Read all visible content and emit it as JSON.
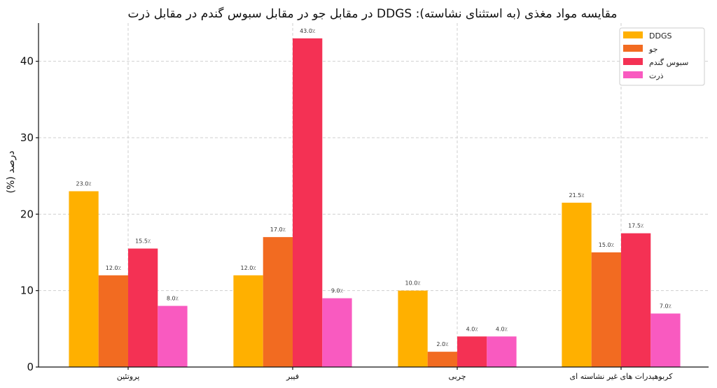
{
  "chart_data": {
    "type": "bar",
    "title": "مقایسه مواد مغذی (به استثنای نشاسته): DDGS در مقابل جو در مقابل سبوس گندم در مقابل ذرت",
    "xlabel": "",
    "ylabel": "درصد (%)",
    "ylim": [
      0,
      45
    ],
    "yticks": [
      "0",
      "10",
      "20",
      "30",
      "40"
    ],
    "grid": true,
    "legend_position": "top-right",
    "categories": [
      "پروتئین",
      "فیبر",
      "چربی",
      "کربوهیدرات های غیر نشاسته ای"
    ],
    "series": [
      {
        "name": "DDGS",
        "color": "#FFB000",
        "values": [
          23.0,
          12.0,
          10.0,
          21.5
        ],
        "labels": [
          "23.0٪",
          "12.0٪",
          "10.0٪",
          "21.5٪"
        ]
      },
      {
        "name": "جو",
        "color": "#F26B21",
        "values": [
          12.0,
          17.0,
          2.0,
          15.0
        ],
        "labels": [
          "12.0٪",
          "17.0٪",
          "2.0٪",
          "15.0٪"
        ]
      },
      {
        "name": "سبوس گندم",
        "color": "#F43154",
        "values": [
          15.5,
          43.0,
          4.0,
          17.5
        ],
        "labels": [
          "15.5٪",
          "43.0٪",
          "4.0٪",
          "17.5٪"
        ]
      },
      {
        "name": "ذرت",
        "color": "#F95AC0",
        "values": [
          8.0,
          9.0,
          4.0,
          7.0
        ],
        "labels": [
          "8.0٪",
          "9.0٪",
          "4.0٪",
          "7.0٪"
        ]
      }
    ]
  }
}
